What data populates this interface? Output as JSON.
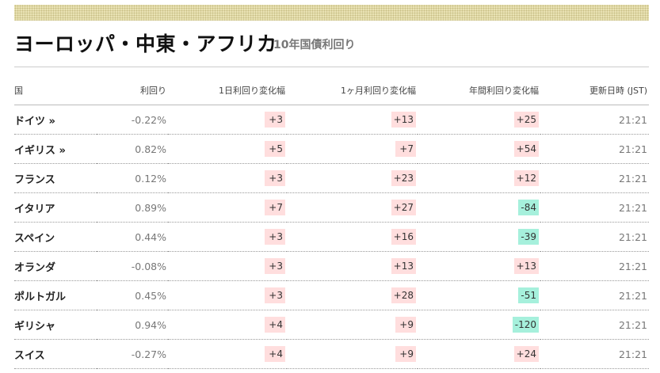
{
  "header": {
    "title": "ヨーロッパ・中東・アフリカ",
    "subtitle": "10年国債利回り"
  },
  "table": {
    "columns": [
      "国",
      "利回り",
      "1日利回り変化幅",
      "1ヶ月利回り変化幅",
      "年間利回り変化幅",
      "更新日時 (JST)"
    ],
    "rows": [
      {
        "country": "ドイツ »",
        "yield": "-0.22%",
        "day": "+3",
        "month": "+13",
        "year": "+25",
        "time": "21:21"
      },
      {
        "country": "イギリス »",
        "yield": "0.82%",
        "day": "+5",
        "month": "+7",
        "year": "+54",
        "time": "21:21"
      },
      {
        "country": "フランス",
        "yield": "0.12%",
        "day": "+3",
        "month": "+23",
        "year": "+12",
        "time": "21:21"
      },
      {
        "country": "イタリア",
        "yield": "0.89%",
        "day": "+7",
        "month": "+27",
        "year": "-84",
        "time": "21:21"
      },
      {
        "country": "スペイン",
        "yield": "0.44%",
        "day": "+3",
        "month": "+16",
        "year": "-39",
        "time": "21:21"
      },
      {
        "country": "オランダ",
        "yield": "-0.08%",
        "day": "+3",
        "month": "+13",
        "year": "+13",
        "time": "21:21"
      },
      {
        "country": "ポルトガル",
        "yield": "0.45%",
        "day": "+3",
        "month": "+28",
        "year": "-51",
        "time": "21:21"
      },
      {
        "country": "ギリシャ",
        "yield": "0.94%",
        "day": "+4",
        "month": "+9",
        "year": "-120",
        "time": "21:21"
      },
      {
        "country": "スイス",
        "yield": "-0.27%",
        "day": "+4",
        "month": "+9",
        "year": "+24",
        "time": "21:21"
      }
    ]
  },
  "colors": {
    "positive_bg": "#ffdede",
    "negative_bg": "#a6f0dc",
    "band": "#e9e2b4"
  }
}
